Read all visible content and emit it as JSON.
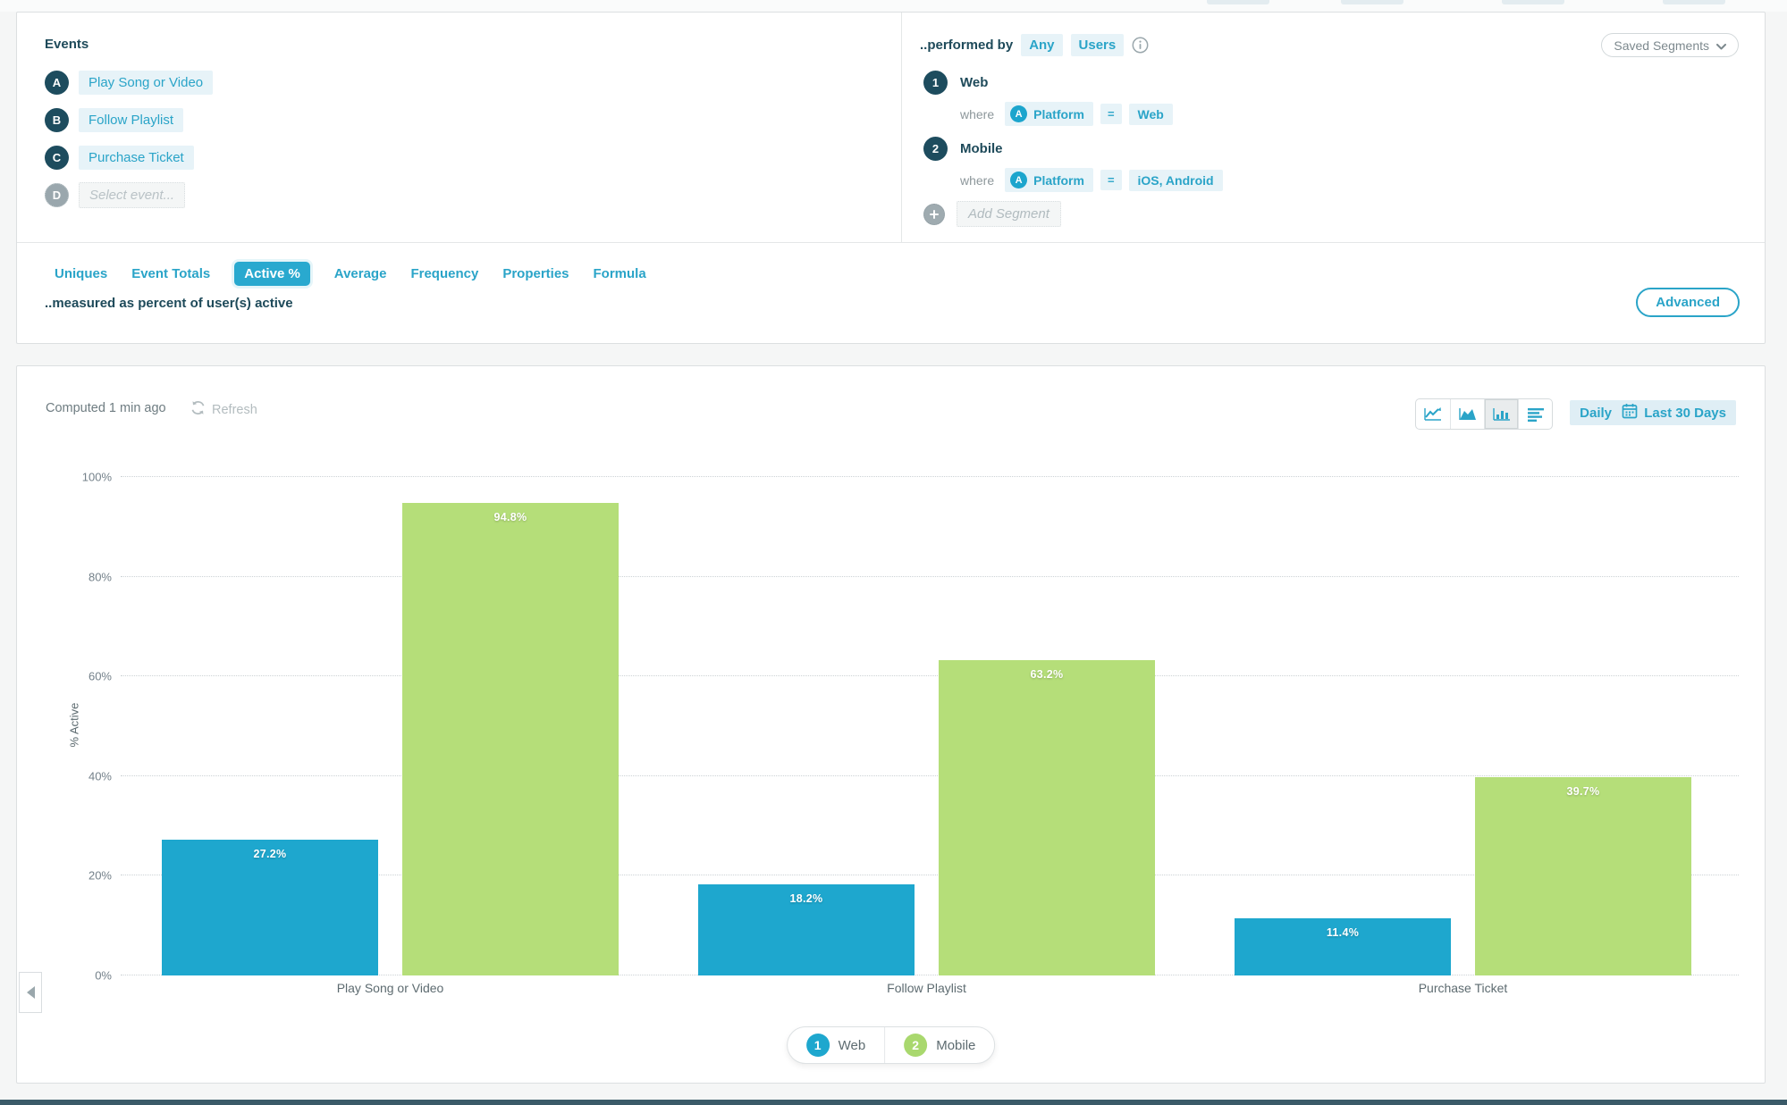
{
  "events_panel": {
    "title": "Events",
    "items": [
      {
        "letter": "A",
        "label": "Play Song or Video",
        "placeholder": false
      },
      {
        "letter": "B",
        "label": "Follow Playlist",
        "placeholder": false
      },
      {
        "letter": "C",
        "label": "Purchase Ticket",
        "placeholder": false
      },
      {
        "letter": "D",
        "label": "Select event...",
        "placeholder": true
      }
    ]
  },
  "segments_panel": {
    "performed_by_label": "..performed by",
    "performed_by_value": "Any",
    "user_type_value": "Users",
    "property_icon_letter": "A",
    "segments": [
      {
        "number": "1",
        "name": "Web",
        "where_label": "where",
        "property": "Platform",
        "operator": "=",
        "value": "Web"
      },
      {
        "number": "2",
        "name": "Mobile",
        "where_label": "where",
        "property": "Platform",
        "operator": "=",
        "value": "iOS, Android"
      }
    ],
    "add_segment_label": "Add Segment",
    "saved_segments_label": "Saved Segments"
  },
  "analysis_tabs": {
    "items": [
      {
        "label": "Uniques",
        "active": false
      },
      {
        "label": "Event Totals",
        "active": false
      },
      {
        "label": "Active %",
        "active": true
      },
      {
        "label": "Average",
        "active": false
      },
      {
        "label": "Frequency",
        "active": false
      },
      {
        "label": "Properties",
        "active": false
      },
      {
        "label": "Formula",
        "active": false
      }
    ],
    "description": "..measured as percent of user(s) active",
    "advanced_label": "Advanced"
  },
  "chart_header": {
    "computed_label": "Computed 1 min ago",
    "refresh_label": "Refresh",
    "granularity_label": "Daily",
    "date_range_label": "Last 30 Days",
    "chart_type_options": [
      "line-chart",
      "area-chart",
      "bar-chart",
      "horizontal-bar-chart"
    ],
    "selected_chart_type": "bar-chart"
  },
  "chart_data": {
    "type": "bar",
    "categories": [
      "Play Song or Video",
      "Follow Playlist",
      "Purchase Ticket"
    ],
    "series": [
      {
        "name": "Web",
        "color": "#1ea7ce",
        "values": [
          27.2,
          18.2,
          11.4
        ],
        "labels": [
          "27.2%",
          "18.2%",
          "11.4%"
        ]
      },
      {
        "name": "Mobile",
        "color": "#b5de79",
        "values": [
          94.8,
          63.2,
          39.7
        ],
        "labels": [
          "94.8%",
          "63.2%",
          "39.7%"
        ]
      }
    ],
    "xlabel": "",
    "ylabel": "% Active",
    "ylim": [
      0,
      100
    ],
    "yticks": [
      {
        "value": 0,
        "label": "0%"
      },
      {
        "value": 20,
        "label": "20%"
      },
      {
        "value": 40,
        "label": "40%"
      },
      {
        "value": 60,
        "label": "60%"
      },
      {
        "value": 80,
        "label": "80%"
      },
      {
        "value": 100,
        "label": "100%"
      }
    ],
    "grid": "horizontal-dotted",
    "legend_position": "bottom-center",
    "legend": [
      {
        "number": "1",
        "label": "Web",
        "color": "#1ea7ce"
      },
      {
        "number": "2",
        "label": "Mobile",
        "color": "#a9d86e"
      }
    ]
  },
  "colors": {
    "accent_teal": "#2aa4c8",
    "active_tab_bg": "#29a9cf",
    "dark_navy": "#1e4a5a",
    "chip_bg": "#e7f3f8",
    "bar_blue": "#1ea7ce",
    "bar_green": "#b5de79",
    "bottom_bar": "#3a5a68"
  }
}
